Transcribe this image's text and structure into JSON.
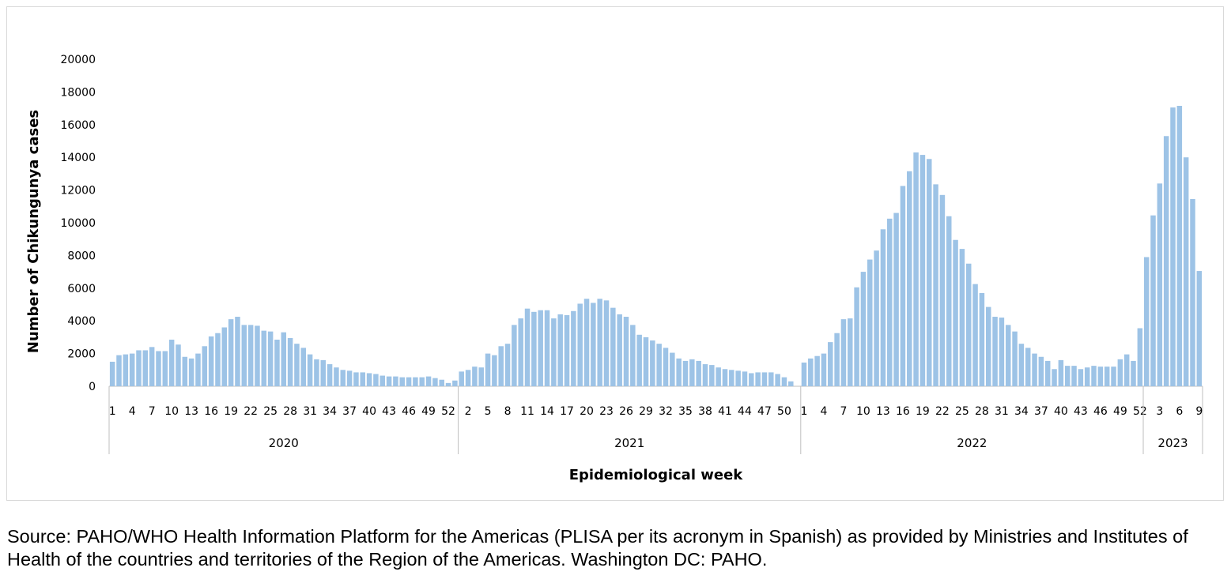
{
  "chart_data": {
    "type": "bar",
    "xlabel": "Epidemiological week",
    "ylabel": "Number of Chikungunya cases",
    "ylim": [
      0,
      20000
    ],
    "y_ticks": [
      "0",
      "2000",
      "4000",
      "6000",
      "8000",
      "10000",
      "12000",
      "14000",
      "16000",
      "18000",
      "20000"
    ],
    "grid": false,
    "bar_color": "#9dc3e6",
    "groups": [
      {
        "year": "2020",
        "weeks": [
          1,
          2,
          3,
          4,
          5,
          6,
          7,
          8,
          9,
          10,
          11,
          12,
          13,
          14,
          15,
          16,
          17,
          18,
          19,
          20,
          21,
          22,
          23,
          24,
          25,
          26,
          27,
          28,
          29,
          30,
          31,
          32,
          33,
          34,
          35,
          36,
          37,
          38,
          39,
          40,
          41,
          42,
          43,
          44,
          45,
          46,
          47,
          48,
          49,
          50,
          51,
          52,
          53
        ],
        "values": [
          1500,
          1900,
          1950,
          2000,
          2200,
          2200,
          2400,
          2150,
          2150,
          2850,
          2550,
          1800,
          1700,
          2000,
          2450,
          3050,
          3250,
          3600,
          4100,
          4250,
          3750,
          3750,
          3700,
          3400,
          3350,
          2850,
          3300,
          2950,
          2600,
          2350,
          1950,
          1650,
          1600,
          1350,
          1150,
          1000,
          950,
          850,
          850,
          800,
          750,
          650,
          600,
          600,
          550,
          550,
          550,
          550,
          600,
          500,
          400,
          200,
          350
        ],
        "tick_labels": [
          "1",
          "4",
          "7",
          "10",
          "13",
          "16",
          "19",
          "22",
          "25",
          "28",
          "31",
          "34",
          "37",
          "40",
          "43",
          "46",
          "49",
          "52"
        ]
      },
      {
        "year": "2021",
        "weeks": [
          1,
          2,
          3,
          4,
          5,
          6,
          7,
          8,
          9,
          10,
          11,
          12,
          13,
          14,
          15,
          16,
          17,
          18,
          19,
          20,
          21,
          22,
          23,
          24,
          25,
          26,
          27,
          28,
          29,
          30,
          31,
          32,
          33,
          34,
          35,
          36,
          37,
          38,
          39,
          40,
          41,
          42,
          43,
          44,
          45,
          46,
          47,
          48,
          49,
          50,
          51,
          52
        ],
        "values": [
          900,
          1000,
          1200,
          1150,
          2000,
          1900,
          2450,
          2600,
          3750,
          4150,
          4750,
          4550,
          4650,
          4650,
          4150,
          4400,
          4350,
          4600,
          5050,
          5350,
          5100,
          5350,
          5250,
          4800,
          4400,
          4250,
          3750,
          3150,
          3000,
          2800,
          2600,
          2350,
          2050,
          1700,
          1550,
          1650,
          1550,
          1350,
          1300,
          1150,
          1050,
          1000,
          950,
          900,
          800,
          850,
          850,
          850,
          750,
          550,
          300,
          0
        ],
        "tick_labels": [
          "2",
          "5",
          "8",
          "11",
          "14",
          "17",
          "20",
          "23",
          "26",
          "29",
          "32",
          "35",
          "38",
          "41",
          "44",
          "47",
          "50"
        ]
      },
      {
        "year": "2022",
        "weeks": [
          1,
          2,
          3,
          4,
          5,
          6,
          7,
          8,
          9,
          10,
          11,
          12,
          13,
          14,
          15,
          16,
          17,
          18,
          19,
          20,
          21,
          22,
          23,
          24,
          25,
          26,
          27,
          28,
          29,
          30,
          31,
          32,
          33,
          34,
          35,
          36,
          37,
          38,
          39,
          40,
          41,
          42,
          43,
          44,
          45,
          46,
          47,
          48,
          49,
          50,
          51,
          52
        ],
        "values": [
          1450,
          1700,
          1850,
          2000,
          2700,
          3250,
          4100,
          4150,
          6050,
          7000,
          7750,
          8300,
          9600,
          10250,
          10600,
          12250,
          13150,
          14300,
          14150,
          13900,
          12350,
          11700,
          10400,
          8950,
          8400,
          7500,
          6250,
          5700,
          4850,
          4250,
          4200,
          3750,
          3350,
          2600,
          2350,
          2000,
          1800,
          1550,
          1050,
          1600,
          1250,
          1250,
          1050,
          1150,
          1250,
          1200,
          1200,
          1200,
          1650,
          1950,
          1550,
          3550
        ],
        "tick_labels": [
          "1",
          "4",
          "7",
          "10",
          "13",
          "16",
          "19",
          "22",
          "25",
          "28",
          "31",
          "34",
          "37",
          "40",
          "43",
          "46",
          "49",
          "52"
        ]
      },
      {
        "year": "2023",
        "weeks": [
          1,
          2,
          3,
          4,
          5,
          6,
          7,
          8,
          9
        ],
        "values": [
          7900,
          10450,
          12400,
          15300,
          17050,
          17150,
          14000,
          11450,
          7050
        ],
        "tick_labels": [
          "3",
          "6",
          "9"
        ]
      }
    ]
  },
  "footer": {
    "source": "Source: PAHO/WHO Health Information Platform for the Americas (PLISA per its acronym in Spanish) as provided by Ministries and Institutes of Health of the countries and territories of the Region of the Americas. Washington DC: PAHO."
  }
}
